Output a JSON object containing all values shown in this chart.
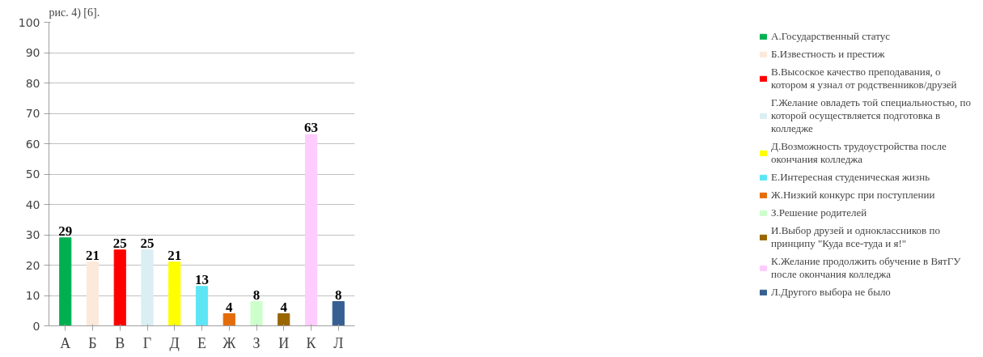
{
  "chart_data": {
    "type": "bar",
    "categories": [
      "А",
      "Б",
      "В",
      "Г",
      "Д",
      "Е",
      "Ж",
      "З",
      "И",
      "К",
      "Л"
    ],
    "series": [
      {
        "name": "А.Государственный статус",
        "color": "#00b050",
        "values": [
          29,
          null,
          null,
          null,
          null,
          null,
          null,
          null,
          null,
          null,
          null
        ]
      },
      {
        "name": "Б.Известность и престиж",
        "color": "#fde9d9",
        "values": [
          null,
          21,
          null,
          null,
          null,
          null,
          null,
          null,
          null,
          null,
          null
        ]
      },
      {
        "name": "В.Высоское качество преподавания, о котором я узнал от родственников/друзей",
        "color": "#ff0000",
        "values": [
          null,
          null,
          25,
          null,
          null,
          null,
          null,
          null,
          null,
          null,
          null
        ]
      },
      {
        "name": "Г.Желание овладеть той специальностью, по которой осуществляется подготовка в колледже",
        "color": "#daeef3",
        "values": [
          null,
          null,
          null,
          25,
          null,
          null,
          null,
          null,
          null,
          null,
          null
        ]
      },
      {
        "name": "Д.Возможность трудоустройства после окончания колледжа",
        "color": "#ffff00",
        "values": [
          null,
          null,
          null,
          null,
          21,
          null,
          null,
          null,
          null,
          null,
          null
        ]
      },
      {
        "name": "Е.Интересная студеническая жизнь",
        "color": "#5ce6f5",
        "values": [
          null,
          null,
          null,
          null,
          null,
          13,
          null,
          null,
          null,
          null,
          null
        ]
      },
      {
        "name": "Ж.Низкий конкурс при поступлении",
        "color": "#e46c0a",
        "values": [
          null,
          null,
          null,
          null,
          null,
          null,
          4,
          null,
          null,
          null,
          null
        ]
      },
      {
        "name": "З.Решение родителей",
        "color": "#ccffcc",
        "values": [
          null,
          null,
          null,
          null,
          null,
          null,
          null,
          8,
          null,
          null,
          null
        ]
      },
      {
        "name": "И.Выбор друзей и одноклассников по принципу \"Куда все-туда и я!\"",
        "color": "#996600",
        "values": [
          null,
          null,
          null,
          null,
          null,
          null,
          null,
          null,
          4,
          null,
          null
        ]
      },
      {
        "name": "К.Желание продолжить обучение в ВятГУ после окончания колледжа",
        "color": "#ffccff",
        "values": [
          null,
          null,
          null,
          null,
          null,
          null,
          null,
          null,
          null,
          63,
          null
        ]
      },
      {
        "name": "Л.Другого выбора не было",
        "color": "#376092",
        "values": [
          null,
          null,
          null,
          null,
          null,
          null,
          null,
          null,
          null,
          null,
          8
        ]
      }
    ],
    "ylim": [
      0,
      100
    ],
    "yticks": [
      0,
      10,
      20,
      30,
      40,
      50,
      60,
      70,
      80,
      90,
      100
    ],
    "grid": "y",
    "legend": "right",
    "data_labels": true,
    "annotations": [
      "рис. 4) [6]."
    ]
  }
}
